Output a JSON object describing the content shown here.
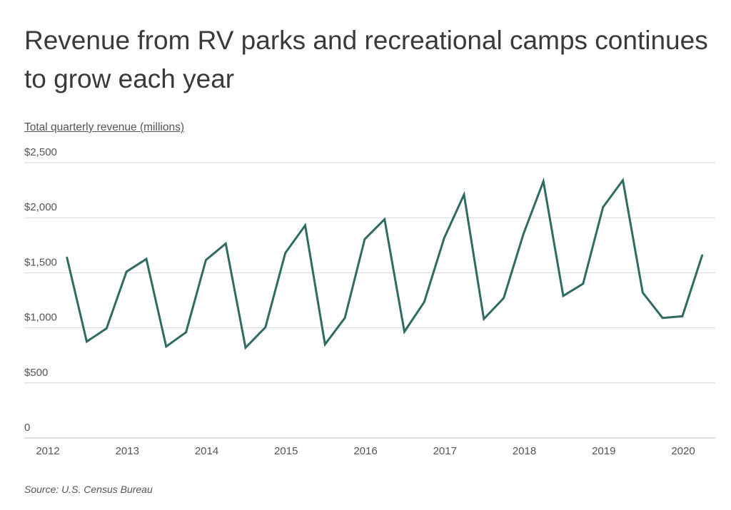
{
  "title": "Revenue from RV parks and recreational camps continues to grow each year",
  "source": "Source:  U.S. Census Bureau",
  "colors": {
    "line": "#2e6b62",
    "grid": "#d9d9d9",
    "axis": "#bdbdbd"
  },
  "chart_data": {
    "type": "line",
    "title": "Revenue from RV parks and recreational camps continues to grow each year",
    "ylabel": "Total quarterly revenue (millions)",
    "xlabel": "",
    "ylim": [
      0,
      2500
    ],
    "xlim": [
      2012,
      2020.4
    ],
    "grid": true,
    "legend": "none",
    "y_ticks": [
      0,
      500,
      1000,
      1500,
      2000,
      2500
    ],
    "y_tick_labels": [
      "0",
      "$500",
      "$1,000",
      "$1,500",
      "$2,000",
      "$2,500"
    ],
    "x_ticks": [
      2012,
      2013,
      2014,
      2015,
      2016,
      2017,
      2018,
      2019,
      2020
    ],
    "x_tick_labels": [
      "2012",
      "2013",
      "2014",
      "2015",
      "2016",
      "2017",
      "2018",
      "2019",
      "2020"
    ],
    "series": [
      {
        "points": [
          [
            2012.375,
            1640
          ],
          [
            2012.625,
            875
          ],
          [
            2012.875,
            995
          ],
          [
            2013.125,
            1510
          ],
          [
            2013.375,
            1625
          ],
          [
            2013.625,
            830
          ],
          [
            2013.875,
            960
          ],
          [
            2014.125,
            1615
          ],
          [
            2014.375,
            1765
          ],
          [
            2014.625,
            820
          ],
          [
            2014.875,
            1005
          ],
          [
            2015.125,
            1680
          ],
          [
            2015.375,
            1930
          ],
          [
            2015.625,
            850
          ],
          [
            2015.875,
            1090
          ],
          [
            2016.125,
            1805
          ],
          [
            2016.375,
            1985
          ],
          [
            2016.625,
            965
          ],
          [
            2016.875,
            1235
          ],
          [
            2017.125,
            1815
          ],
          [
            2017.375,
            2210
          ],
          [
            2017.625,
            1080
          ],
          [
            2017.875,
            1270
          ],
          [
            2018.125,
            1855
          ],
          [
            2018.375,
            2330
          ],
          [
            2018.625,
            1290
          ],
          [
            2018.875,
            1400
          ],
          [
            2019.125,
            2095
          ],
          [
            2019.375,
            2340
          ],
          [
            2019.625,
            1320
          ],
          [
            2019.875,
            1090
          ],
          [
            2020.125,
            1105
          ],
          [
            2020.375,
            1660
          ]
        ]
      }
    ]
  }
}
